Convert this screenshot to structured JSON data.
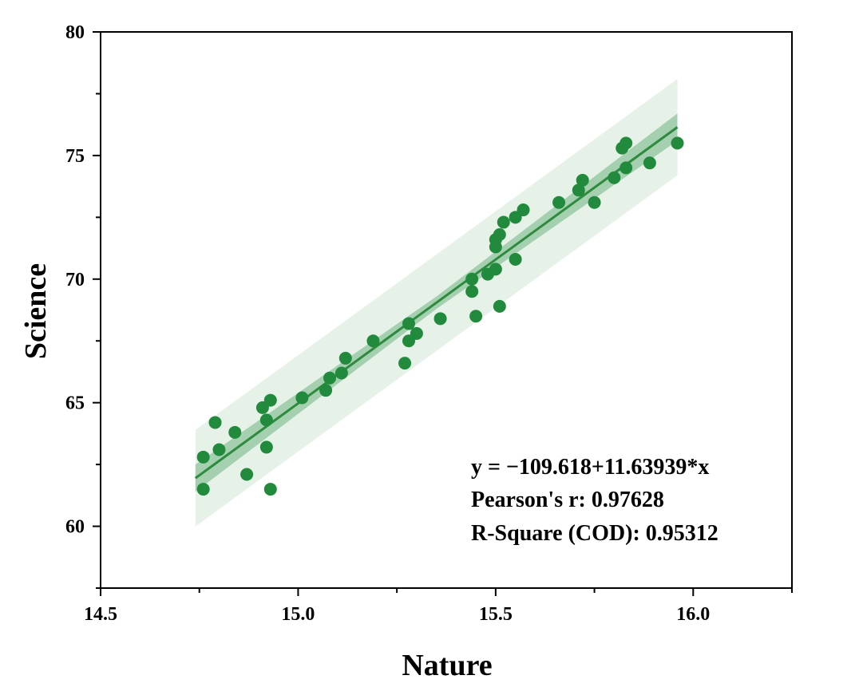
{
  "chart_data": {
    "type": "scatter",
    "title": "",
    "xlabel": "Nature",
    "ylabel": "Science",
    "xlim": [
      14.5,
      16.25
    ],
    "ylim": [
      57.5,
      80
    ],
    "xticks": [
      14.5,
      15.0,
      15.5,
      16.0
    ],
    "xtick_labels": [
      "14.5",
      "15.0",
      "15.5",
      "16.0"
    ],
    "yticks": [
      60,
      65,
      70,
      75,
      80
    ],
    "ytick_labels": [
      "60",
      "65",
      "70",
      "75",
      "80"
    ],
    "grid": false,
    "colors": {
      "points": "#218a3c",
      "fit_line": "#2e8b3e",
      "confidence_band": "#8fc49e",
      "prediction_band": "#e6f1e8"
    },
    "series": [
      {
        "values": [
          [
            14.76,
            62.8
          ],
          [
            14.76,
            61.5
          ],
          [
            14.79,
            64.2
          ],
          [
            14.8,
            63.1
          ],
          [
            14.84,
            63.8
          ],
          [
            14.87,
            62.1
          ],
          [
            14.91,
            64.8
          ],
          [
            14.92,
            64.3
          ],
          [
            14.92,
            63.2
          ],
          [
            14.93,
            65.1
          ],
          [
            14.93,
            61.5
          ],
          [
            15.01,
            65.2
          ],
          [
            15.07,
            65.5
          ],
          [
            15.08,
            66.0
          ],
          [
            15.11,
            66.2
          ],
          [
            15.12,
            66.8
          ],
          [
            15.19,
            67.5
          ],
          [
            15.27,
            66.6
          ],
          [
            15.28,
            68.2
          ],
          [
            15.28,
            67.5
          ],
          [
            15.3,
            67.8
          ],
          [
            15.36,
            68.4
          ],
          [
            15.44,
            69.5
          ],
          [
            15.44,
            70.0
          ],
          [
            15.45,
            68.5
          ],
          [
            15.48,
            70.2
          ],
          [
            15.5,
            71.6
          ],
          [
            15.5,
            70.4
          ],
          [
            15.5,
            71.3
          ],
          [
            15.51,
            68.9
          ],
          [
            15.51,
            71.8
          ],
          [
            15.52,
            72.3
          ],
          [
            15.55,
            72.5
          ],
          [
            15.55,
            70.8
          ],
          [
            15.57,
            72.8
          ],
          [
            15.66,
            73.1
          ],
          [
            15.71,
            73.6
          ],
          [
            15.72,
            74.0
          ],
          [
            15.75,
            73.1
          ],
          [
            15.8,
            74.1
          ],
          [
            15.82,
            75.3
          ],
          [
            15.83,
            74.5
          ],
          [
            15.83,
            75.5
          ],
          [
            15.89,
            74.7
          ],
          [
            15.96,
            75.5
          ]
        ]
      }
    ],
    "fit": {
      "intercept": -109.618,
      "slope": 11.63939,
      "x_range": [
        14.74,
        15.96
      ],
      "confidence_halfwidth": [
        0.55,
        0.25,
        0.55
      ],
      "prediction_halfwidth": 1.95
    },
    "annotations": [
      "y = −109.618+11.63939*x",
      "Pearson's r: 0.97628",
      "R-Square (COD): 0.95312"
    ]
  }
}
